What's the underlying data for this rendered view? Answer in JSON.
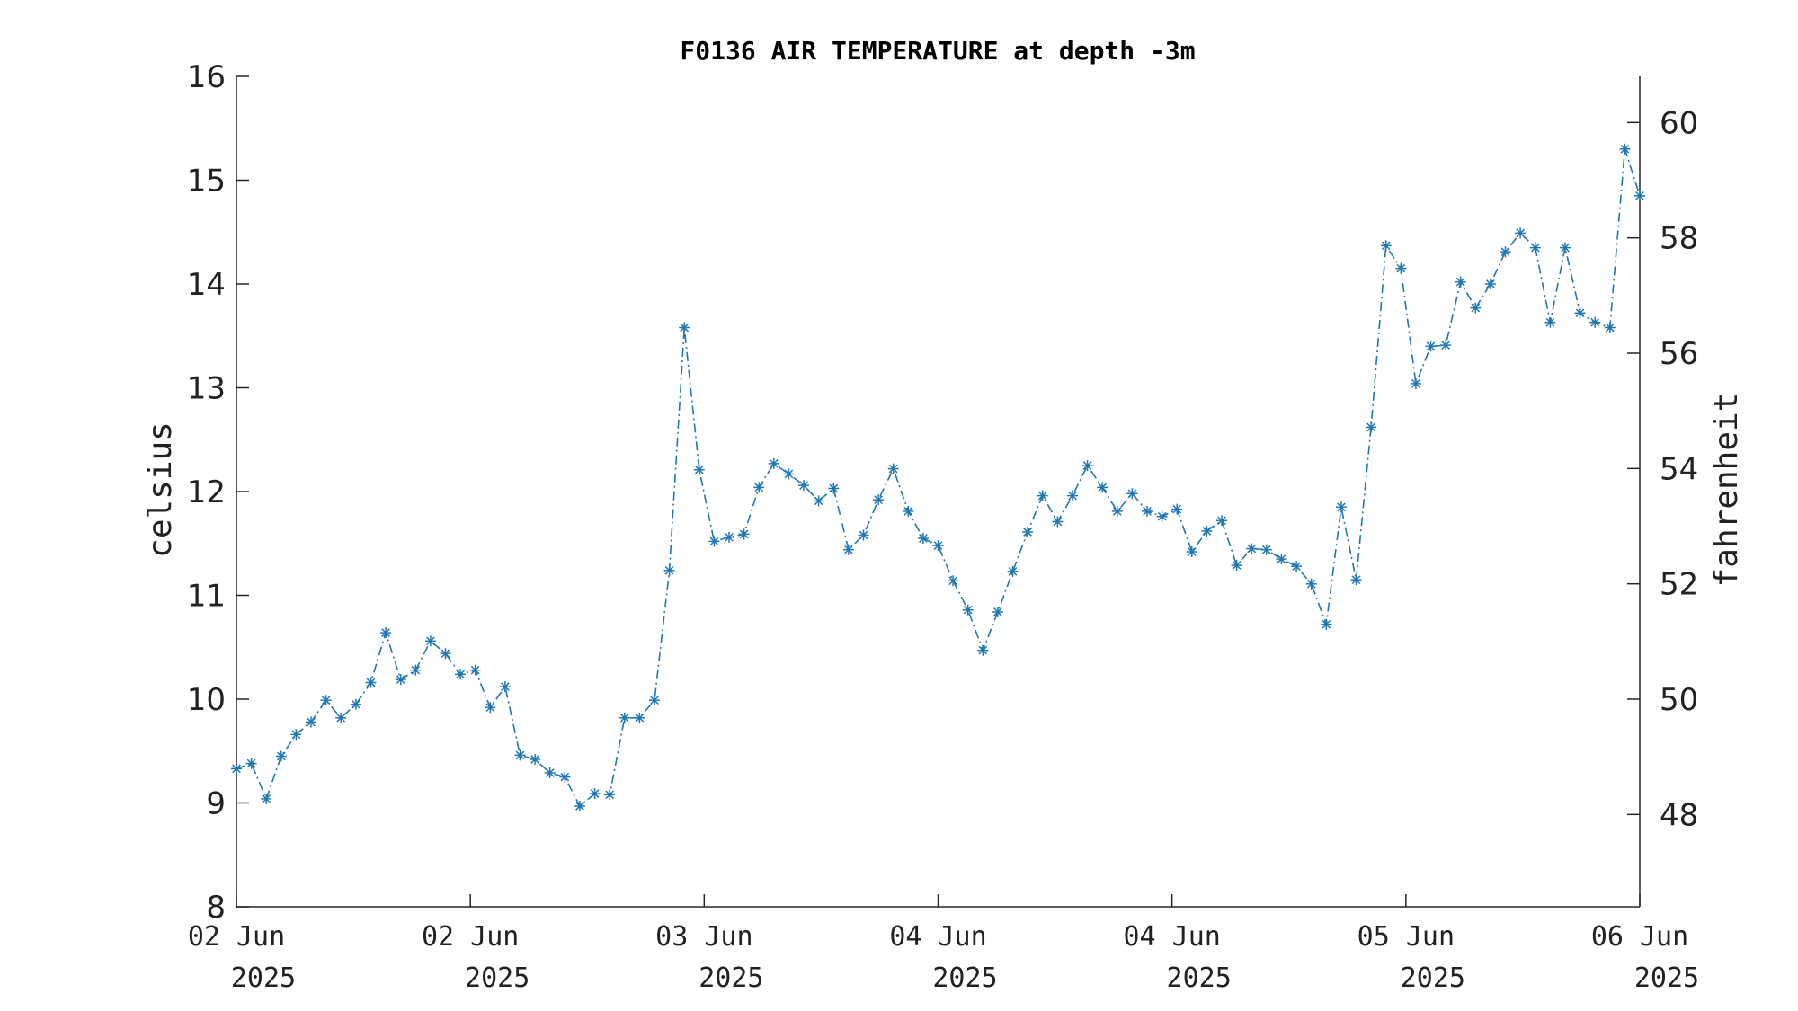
{
  "chart_data": {
    "type": "line",
    "title": "F0136 AIR TEMPERATURE at depth -3m",
    "ylabel": "celsius",
    "y2label": "fahrenheit",
    "ylim": [
      8,
      16
    ],
    "y2lim": [
      46.4,
      60.8
    ],
    "y_ticks": [
      "8",
      "9",
      "10",
      "11",
      "12",
      "13",
      "14",
      "15",
      "16"
    ],
    "y2_ticks": [
      "48",
      "50",
      "52",
      "54",
      "56",
      "58",
      "60"
    ],
    "x_ticks": [
      {
        "line1": "02 Jun",
        "line2": "2025"
      },
      {
        "line1": "02 Jun",
        "line2": "2025"
      },
      {
        "line1": "03 Jun",
        "line2": "2025"
      },
      {
        "line1": "04 Jun",
        "line2": "2025"
      },
      {
        "line1": "04 Jun",
        "line2": "2025"
      },
      {
        "line1": "05 Jun",
        "line2": "2025"
      },
      {
        "line1": "06 Jun",
        "line2": "2025"
      }
    ],
    "xlim": [
      0,
      6
    ],
    "grid": false,
    "line_color": "#1f77b4",
    "marker": "asterisk",
    "line_style": "dash-dot",
    "series": [
      {
        "values": [
          9.33,
          9.38,
          9.04,
          9.45,
          9.66,
          9.78,
          9.99,
          9.82,
          9.95,
          10.16,
          10.64,
          10.19,
          10.28,
          10.56,
          10.44,
          10.24,
          10.28,
          9.92,
          10.12,
          9.46,
          9.42,
          9.29,
          9.25,
          8.97,
          9.09,
          9.08,
          9.82,
          9.82,
          9.99,
          11.24,
          13.58,
          12.21,
          11.52,
          11.56,
          11.59,
          12.04,
          12.27,
          12.17,
          12.06,
          11.91,
          12.03,
          11.44,
          11.58,
          11.92,
          12.22,
          11.81,
          11.55,
          11.48,
          11.14,
          10.86,
          10.47,
          10.84,
          11.23,
          11.61,
          11.96,
          11.71,
          11.96,
          12.25,
          12.04,
          11.81,
          11.98,
          11.81,
          11.76,
          11.83,
          11.42,
          11.62,
          11.72,
          11.29,
          11.45,
          11.44,
          11.35,
          11.28,
          11.11,
          10.72,
          11.85,
          11.15,
          12.62,
          14.37,
          14.15,
          13.04,
          13.4,
          13.41,
          14.02,
          13.77,
          14.0,
          14.31,
          14.49,
          14.35,
          13.63,
          14.35,
          13.72,
          13.63,
          13.58,
          15.3,
          14.85
        ]
      }
    ]
  }
}
